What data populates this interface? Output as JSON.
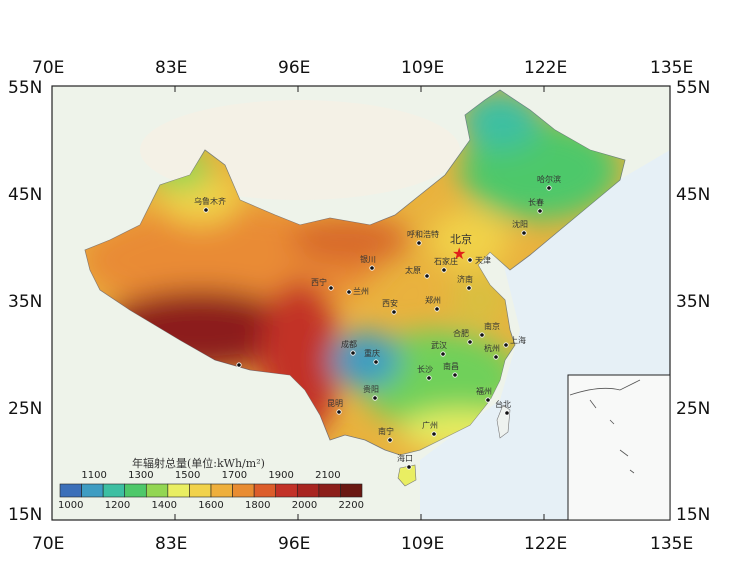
{
  "axes": {
    "top_lon": [
      "70E",
      "83E",
      "96E",
      "109E",
      "122E",
      "135E"
    ],
    "bottom_lon": [
      "70E",
      "83E",
      "96E",
      "109E",
      "122E",
      "135E"
    ],
    "left_lat": [
      "55N",
      "45N",
      "35N",
      "25N",
      "15N"
    ],
    "right_lat": [
      "55N",
      "45N",
      "35N",
      "25N",
      "15N"
    ]
  },
  "legend": {
    "title": "年辐射总量(单位:kWh/m²)",
    "upper_labels": [
      "1100",
      "1300",
      "1500",
      "1700",
      "1900",
      "2100"
    ],
    "lower_labels": [
      "1000",
      "1200",
      "1400",
      "1600",
      "1800",
      "2000",
      "2200"
    ],
    "colors": [
      "#3b6fb9",
      "#3e9cc2",
      "#3dbfa2",
      "#4ec86a",
      "#92d652",
      "#e9ee62",
      "#f1d24a",
      "#eeaf3c",
      "#e88c32",
      "#dc5d2b",
      "#c23228",
      "#a82520",
      "#8c1e1a",
      "#6a1812"
    ]
  },
  "capital": {
    "name": "北京",
    "marker": "star-icon",
    "color": "#e0201a"
  },
  "cities": [
    "乌鲁木齐",
    "哈尔滨",
    "长春",
    "沈阳",
    "呼和浩特",
    "天津",
    "银川",
    "太原",
    "石家庄",
    "西宁",
    "兰州",
    "济南",
    "西安",
    "郑州",
    "成都",
    "重庆",
    "武汉",
    "合肥",
    "南京",
    "上海",
    "杭州",
    "长沙",
    "南昌",
    "贵阳",
    "昆明",
    "福州",
    "台北",
    "南宁",
    "广州",
    "海口"
  ]
}
